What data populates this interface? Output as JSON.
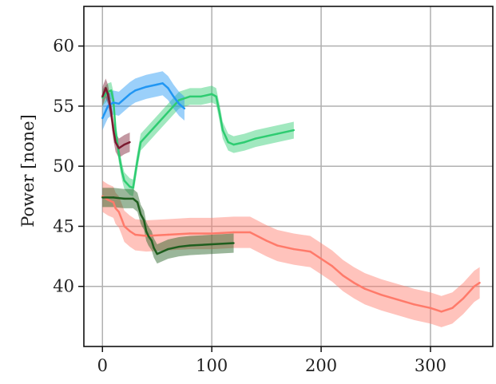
{
  "chart_data": {
    "type": "line",
    "title": "",
    "xlabel": "",
    "ylabel": "Power [none]",
    "xlim": [
      -17,
      357
    ],
    "ylim": [
      35,
      63.3
    ],
    "xticks": [
      0,
      100,
      200,
      300
    ],
    "yticks": [
      40,
      45,
      50,
      55,
      60
    ],
    "grid": true,
    "legend": "none",
    "series": [
      {
        "color": "#ff7a6a",
        "band": 1.3,
        "points": [
          [
            0,
            47.5
          ],
          [
            5,
            47.2
          ],
          [
            10,
            47.0
          ],
          [
            12,
            46.5
          ],
          [
            15,
            46.2
          ],
          [
            18,
            45.5
          ],
          [
            20,
            45.0
          ],
          [
            25,
            44.6
          ],
          [
            30,
            44.3
          ],
          [
            40,
            44.2
          ],
          [
            60,
            44.3
          ],
          [
            80,
            44.4
          ],
          [
            100,
            44.4
          ],
          [
            120,
            44.5
          ],
          [
            135,
            44.5
          ],
          [
            150,
            43.8
          ],
          [
            160,
            43.4
          ],
          [
            175,
            43.1
          ],
          [
            190,
            42.9
          ],
          [
            200,
            42.3
          ],
          [
            210,
            41.7
          ],
          [
            220,
            40.9
          ],
          [
            230,
            40.3
          ],
          [
            240,
            39.8
          ],
          [
            255,
            39.3
          ],
          [
            270,
            38.9
          ],
          [
            285,
            38.5
          ],
          [
            300,
            38.2
          ],
          [
            310,
            37.9
          ],
          [
            320,
            38.2
          ],
          [
            330,
            39.0
          ],
          [
            340,
            40.0
          ],
          [
            345,
            40.3
          ]
        ]
      },
      {
        "color": "#2ecc71",
        "band": 0.7,
        "points": [
          [
            0,
            55.7
          ],
          [
            5,
            56.2
          ],
          [
            8,
            56.3
          ],
          [
            10,
            55.5
          ],
          [
            12,
            53.0
          ],
          [
            15,
            51.0
          ],
          [
            18,
            49.5
          ],
          [
            20,
            48.8
          ],
          [
            25,
            48.3
          ],
          [
            28,
            48.2
          ],
          [
            32,
            50.5
          ],
          [
            35,
            52.0
          ],
          [
            40,
            52.5
          ],
          [
            50,
            53.5
          ],
          [
            60,
            54.5
          ],
          [
            70,
            55.5
          ],
          [
            80,
            55.8
          ],
          [
            90,
            55.8
          ],
          [
            100,
            56.0
          ],
          [
            104,
            55.8
          ],
          [
            107,
            54.5
          ],
          [
            110,
            53.0
          ],
          [
            115,
            52.0
          ],
          [
            120,
            51.8
          ],
          [
            130,
            52.0
          ],
          [
            140,
            52.3
          ],
          [
            150,
            52.5
          ],
          [
            160,
            52.7
          ],
          [
            170,
            52.9
          ],
          [
            175,
            53.0
          ]
        ]
      },
      {
        "color": "#2196f3",
        "band": 1.0,
        "points": [
          [
            0,
            54.0
          ],
          [
            5,
            55.0
          ],
          [
            10,
            55.3
          ],
          [
            15,
            55.2
          ],
          [
            20,
            55.6
          ],
          [
            25,
            56.0
          ],
          [
            30,
            56.3
          ],
          [
            40,
            56.6
          ],
          [
            50,
            56.8
          ],
          [
            55,
            56.9
          ],
          [
            60,
            56.5
          ],
          [
            65,
            55.8
          ],
          [
            70,
            55.2
          ],
          [
            75,
            54.8
          ]
        ]
      },
      {
        "color": "#7b1a30",
        "band": 0.8,
        "points": [
          [
            0,
            55.8
          ],
          [
            3,
            56.5
          ],
          [
            5,
            56.0
          ],
          [
            8,
            54.5
          ],
          [
            10,
            53.0
          ],
          [
            12,
            52.0
          ],
          [
            15,
            51.5
          ],
          [
            20,
            51.8
          ],
          [
            25,
            52.0
          ]
        ]
      },
      {
        "color": "#1e5e1e",
        "band": 0.8,
        "points": [
          [
            0,
            47.4
          ],
          [
            10,
            47.4
          ],
          [
            20,
            47.3
          ],
          [
            28,
            47.3
          ],
          [
            32,
            47.0
          ],
          [
            35,
            46.0
          ],
          [
            38,
            45.5
          ],
          [
            40,
            44.6
          ],
          [
            42,
            44.2
          ],
          [
            45,
            43.8
          ],
          [
            47,
            43.2
          ],
          [
            50,
            42.7
          ],
          [
            60,
            43.1
          ],
          [
            70,
            43.3
          ],
          [
            80,
            43.4
          ],
          [
            100,
            43.5
          ],
          [
            120,
            43.6
          ]
        ]
      }
    ]
  }
}
